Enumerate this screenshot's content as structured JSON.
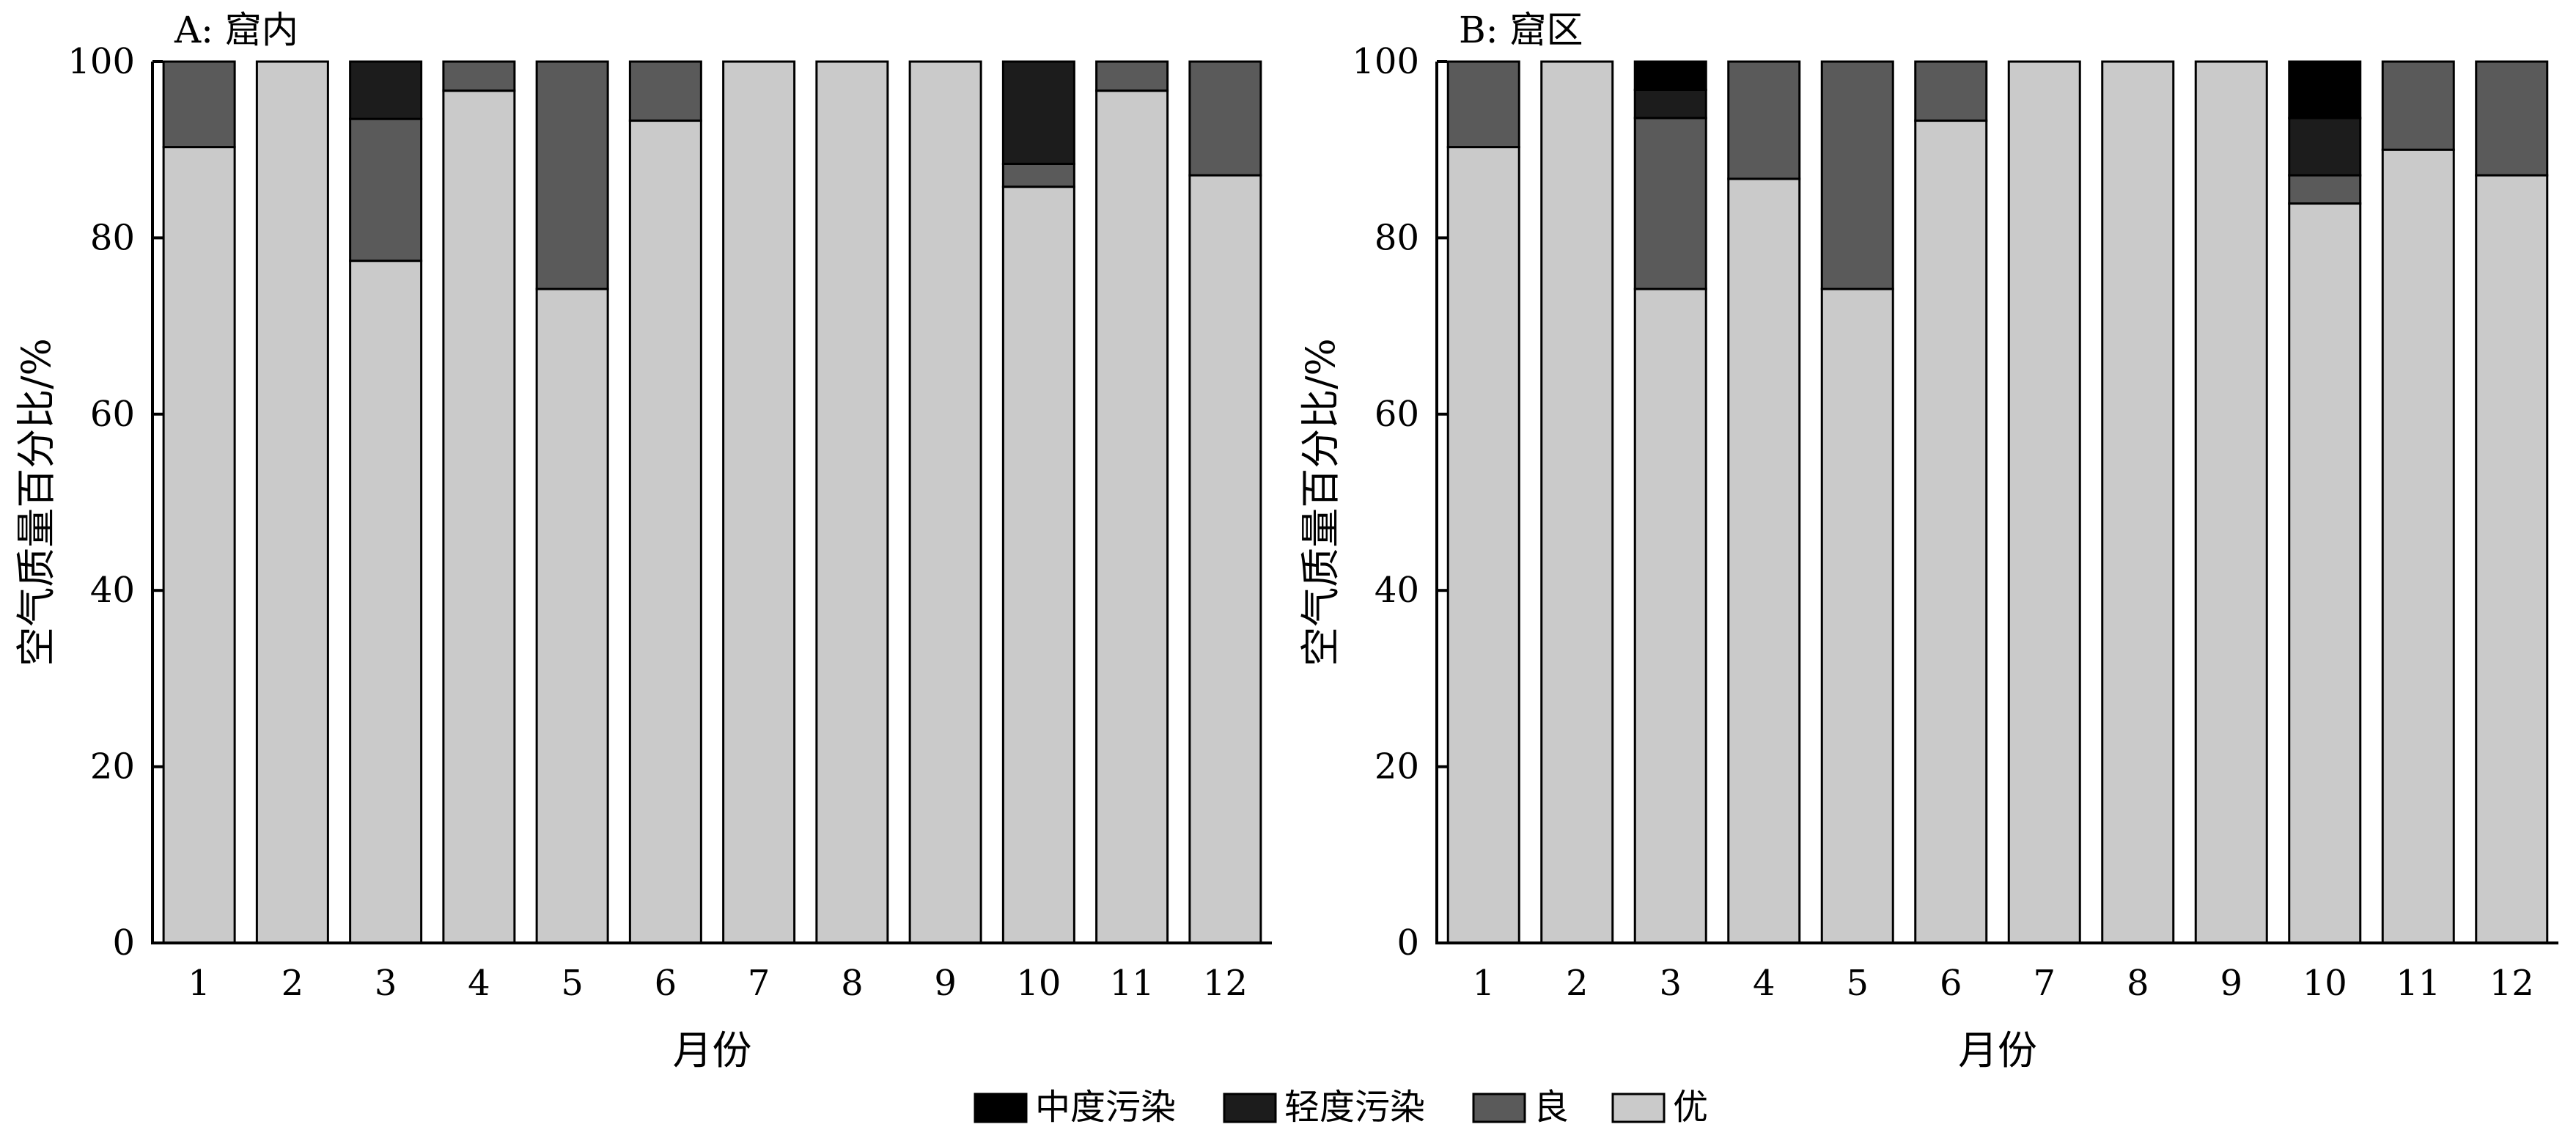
{
  "figure": {
    "legend_placement": "bottom-center"
  },
  "colors": {
    "moderate": "#000000",
    "light": "#1c1c1c",
    "good": "#5a5a5a",
    "excellent": "#cacaca"
  },
  "legend": [
    {
      "key": "moderate",
      "label": "中度污染"
    },
    {
      "key": "light",
      "label": "轻度污染"
    },
    {
      "key": "good",
      "label": "良"
    },
    {
      "key": "excellent",
      "label": "优"
    }
  ],
  "chart_data": [
    {
      "type": "bar",
      "stacked": true,
      "title": "A: 窟内",
      "xlabel": "月份",
      "ylabel": "空气质量百分比/%",
      "ylim": [
        0,
        100
      ],
      "yticks": [
        "0",
        "20",
        "40",
        "60",
        "80",
        "100"
      ],
      "grid": false,
      "categories": [
        "1",
        "2",
        "3",
        "4",
        "5",
        "6",
        "7",
        "8",
        "9",
        "10",
        "11",
        "12"
      ],
      "series": [
        {
          "key": "excellent",
          "name": "优",
          "values": [
            90.3,
            100,
            77.4,
            96.7,
            74.2,
            93.3,
            100,
            100,
            100,
            85.8,
            96.7,
            87.1
          ]
        },
        {
          "key": "good",
          "name": "良",
          "values": [
            9.7,
            0,
            16.1,
            3.3,
            25.8,
            6.7,
            0,
            0,
            0,
            2.6,
            3.3,
            12.9
          ]
        },
        {
          "key": "light",
          "name": "轻度污染",
          "values": [
            0,
            0,
            6.5,
            0,
            0,
            0,
            0,
            0,
            0,
            11.6,
            0,
            0
          ]
        },
        {
          "key": "moderate",
          "name": "中度污染",
          "values": [
            0,
            0,
            0,
            0,
            0,
            0,
            0,
            0,
            0,
            0,
            0,
            0
          ]
        }
      ]
    },
    {
      "type": "bar",
      "stacked": true,
      "title": "B: 窟区",
      "xlabel": "月份",
      "ylabel": "空气质量百分比/%",
      "ylim": [
        0,
        100
      ],
      "yticks": [
        "0",
        "20",
        "40",
        "60",
        "80",
        "100"
      ],
      "grid": false,
      "categories": [
        "1",
        "2",
        "3",
        "4",
        "5",
        "6",
        "7",
        "8",
        "9",
        "10",
        "11",
        "12"
      ],
      "series": [
        {
          "key": "excellent",
          "name": "优",
          "values": [
            90.3,
            100,
            74.2,
            86.7,
            74.2,
            93.3,
            100,
            100,
            100,
            83.9,
            90.0,
            87.1
          ]
        },
        {
          "key": "good",
          "name": "良",
          "values": [
            9.7,
            0,
            19.4,
            13.3,
            25.8,
            6.7,
            0,
            0,
            0,
            3.2,
            10.0,
            12.9
          ]
        },
        {
          "key": "light",
          "name": "轻度污染",
          "values": [
            0,
            0,
            3.2,
            0,
            0,
            0,
            0,
            0,
            0,
            6.5,
            0,
            0
          ]
        },
        {
          "key": "moderate",
          "name": "中度污染",
          "values": [
            0,
            0,
            3.2,
            0,
            0,
            0,
            0,
            0,
            0,
            6.4,
            0,
            0
          ]
        }
      ]
    }
  ]
}
